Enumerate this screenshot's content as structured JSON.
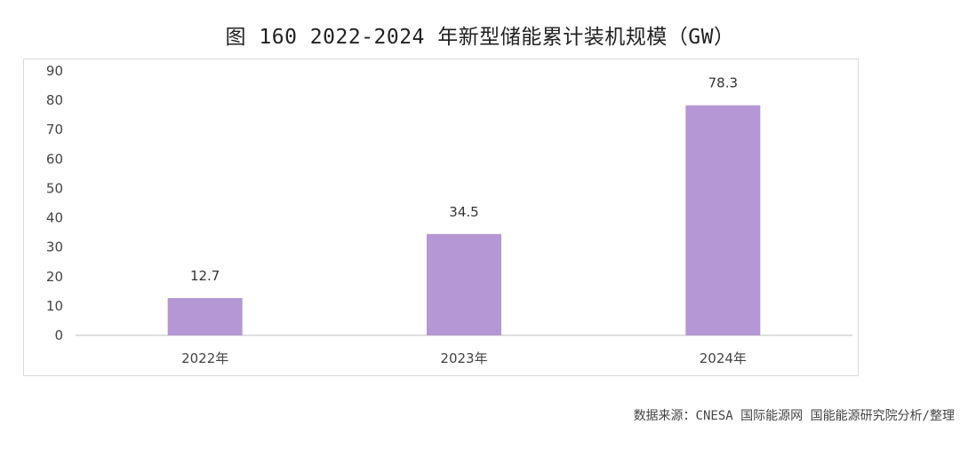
{
  "title": "图 160 2022-2024 年新型储能累计装机规模（GW）",
  "source": "数据来源：CNESA 国际能源网 国能能源研究院分析/整理",
  "colors": {
    "bar": "#b497d4",
    "axis": "#bfbfbf",
    "frame": "#d9d9d9"
  },
  "chart_data": {
    "type": "bar",
    "categories": [
      "2022年",
      "2023年",
      "2024年"
    ],
    "values": [
      12.7,
      34.5,
      78.3
    ],
    "data_labels": [
      "12.7",
      "34.5",
      "78.3"
    ],
    "yticks": [
      "0",
      "10",
      "20",
      "30",
      "40",
      "50",
      "60",
      "70",
      "80",
      "90"
    ],
    "ylim": [
      0,
      90
    ],
    "grid": false,
    "legend": "none"
  }
}
